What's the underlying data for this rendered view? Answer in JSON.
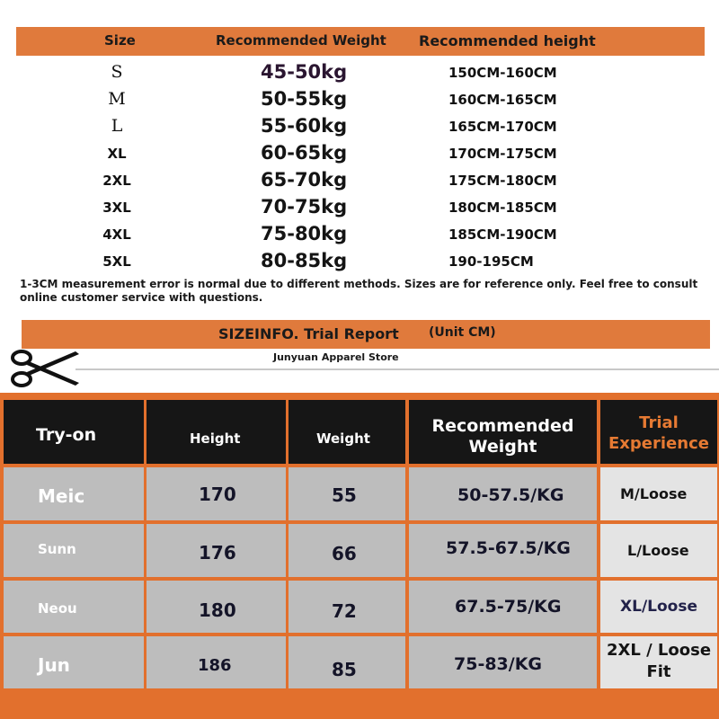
{
  "size_chart": {
    "headers": {
      "size": "Size",
      "weight": "Recommended Weight",
      "height": "Recommended height"
    },
    "rows": [
      {
        "size": "S",
        "weight": "45-50kg",
        "height": "150CM-160CM"
      },
      {
        "size": "M",
        "weight": "50-55kg",
        "height": "160CM-165CM"
      },
      {
        "size": "L",
        "weight": "55-60kg",
        "height": "165CM-170CM"
      },
      {
        "size": "XL",
        "weight": "60-65kg",
        "height": "170CM-175CM"
      },
      {
        "size": "2XL",
        "weight": "65-70kg",
        "height": "175CM-180CM"
      },
      {
        "size": "3XL",
        "weight": "70-75kg",
        "height": "180CM-185CM"
      },
      {
        "size": "4XL",
        "weight": "75-80kg",
        "height": "185CM-190CM"
      },
      {
        "size": "5XL",
        "weight": "80-85kg",
        "height": "190-195CM"
      }
    ],
    "note": "1-3CM measurement error is normal due to different methods. Sizes are for reference only. Feel free to consult online customer service with questions."
  },
  "trial_report": {
    "title": "SIZEINFO. Trial Report",
    "unit": "(Unit CM)",
    "store": "Junyuan Apparel Store",
    "icon": "scissors-icon",
    "headers": {
      "tryon": "Try-on",
      "height": "Height",
      "weight": "Weight",
      "recommended_weight": "Recommended Weight",
      "trial_experience": "Trial Experience"
    },
    "rows": [
      {
        "name": "Meic",
        "height": "170",
        "weight": "55",
        "recommended": "50-57.5/KG",
        "fit": "M/Loose"
      },
      {
        "name": "Sunn",
        "height": "176",
        "weight": "66",
        "recommended": "57.5-67.5/KG",
        "fit": "L/Loose"
      },
      {
        "name": "Neou",
        "height": "180",
        "weight": "72",
        "recommended": "67.5-75/KG",
        "fit": "XL/Loose"
      },
      {
        "name": "Jun",
        "height": "186",
        "weight": "85",
        "recommended": "75-83/KG",
        "fit": "2XL / Loose Fit"
      }
    ]
  },
  "colors": {
    "accent_orange": "#e07a3c",
    "dark_cell": "#161616",
    "grey_cell": "#bdbdbd"
  }
}
